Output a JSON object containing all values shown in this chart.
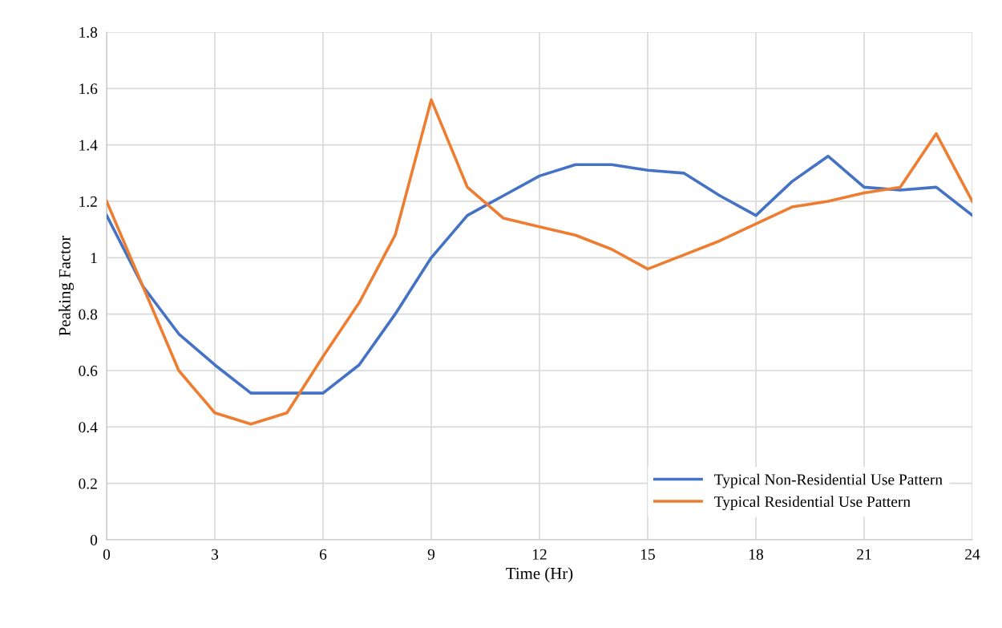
{
  "chart_data": {
    "type": "line",
    "xlabel": "Time (Hr)",
    "ylabel": "Peaking Factor",
    "x": [
      0,
      1,
      2,
      3,
      4,
      5,
      6,
      7,
      8,
      9,
      10,
      11,
      12,
      13,
      14,
      15,
      16,
      17,
      18,
      19,
      20,
      21,
      22,
      23,
      24
    ],
    "series": [
      {
        "name": "Typical Non-Residential Use Pattern",
        "color": "#4472c4",
        "values": [
          1.15,
          0.9,
          0.73,
          0.62,
          0.52,
          0.52,
          0.52,
          0.62,
          0.8,
          1.0,
          1.15,
          1.22,
          1.29,
          1.33,
          1.33,
          1.31,
          1.3,
          1.22,
          1.15,
          1.27,
          1.36,
          1.25,
          1.24,
          1.25,
          1.15
        ]
      },
      {
        "name": "Typical Residential Use Pattern",
        "color": "#ed7d31",
        "values": [
          1.2,
          0.9,
          0.6,
          0.45,
          0.41,
          0.45,
          0.65,
          0.84,
          1.08,
          1.56,
          1.25,
          1.14,
          1.11,
          1.08,
          1.03,
          0.96,
          1.01,
          1.06,
          1.12,
          1.18,
          1.2,
          1.23,
          1.25,
          1.44,
          1.2
        ]
      }
    ],
    "xlim": [
      0,
      24
    ],
    "xticks": [
      0,
      3,
      6,
      9,
      12,
      15,
      18,
      21,
      24
    ],
    "ylim": [
      0,
      1.8
    ],
    "yticks": [
      0,
      0.2,
      0.4,
      0.6,
      0.8,
      1,
      1.2,
      1.4,
      1.6,
      1.8
    ],
    "grid": true,
    "legend": "bottom right",
    "marker": "none",
    "line_style": "solid"
  }
}
